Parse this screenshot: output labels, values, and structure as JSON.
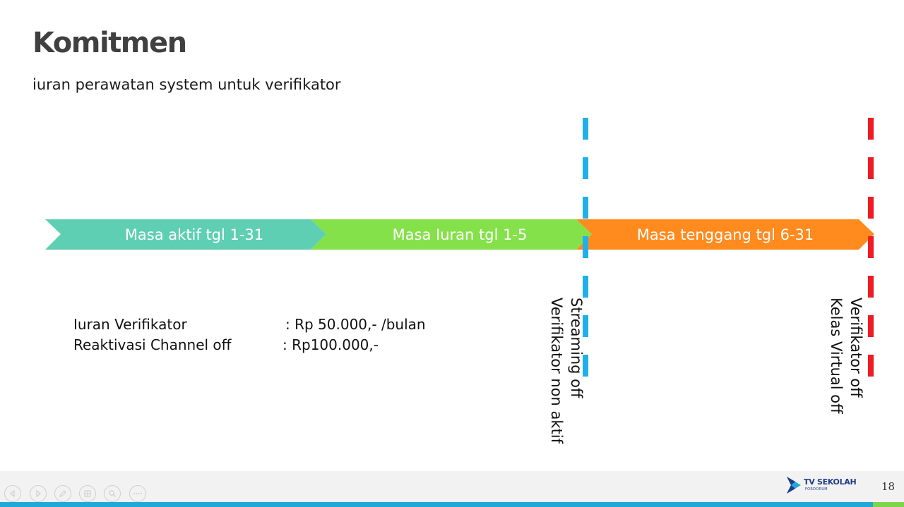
{
  "slide": {
    "title": "Komitmen",
    "subtitle": "iuran perawatan system untuk verifikator"
  },
  "timeline": {
    "segments": [
      {
        "label": "Masa aktif tgl 1-31",
        "color": "#5fcfb3"
      },
      {
        "label": "Masa Iuran tgl 1-5",
        "color": "#85e14a"
      },
      {
        "label": "Masa tenggang tgl 6-31",
        "color": "#ff8a1e"
      }
    ],
    "markers": [
      {
        "color": "#1fb0ec",
        "lines": [
          "Streaming off",
          "Verifikator non aktif"
        ]
      },
      {
        "color": "#ee1c25",
        "lines": [
          "Verifikator off",
          "Kelas Virtual off"
        ]
      }
    ]
  },
  "info": {
    "rows": [
      {
        "label": "Iuran Verifikator",
        "value": ": Rp 50.000,- /bulan"
      },
      {
        "label": "Reaktivasi Channel off",
        "value": ": Rp100.000,-"
      }
    ]
  },
  "footer": {
    "nav_icons": [
      "previous-icon",
      "next-icon",
      "pen-icon",
      "slides-icon",
      "zoom-icon",
      "more-icon"
    ],
    "logo_text": "TV SEKOLAH",
    "logo_subtext": "FORDORUM",
    "page_number": "18"
  }
}
